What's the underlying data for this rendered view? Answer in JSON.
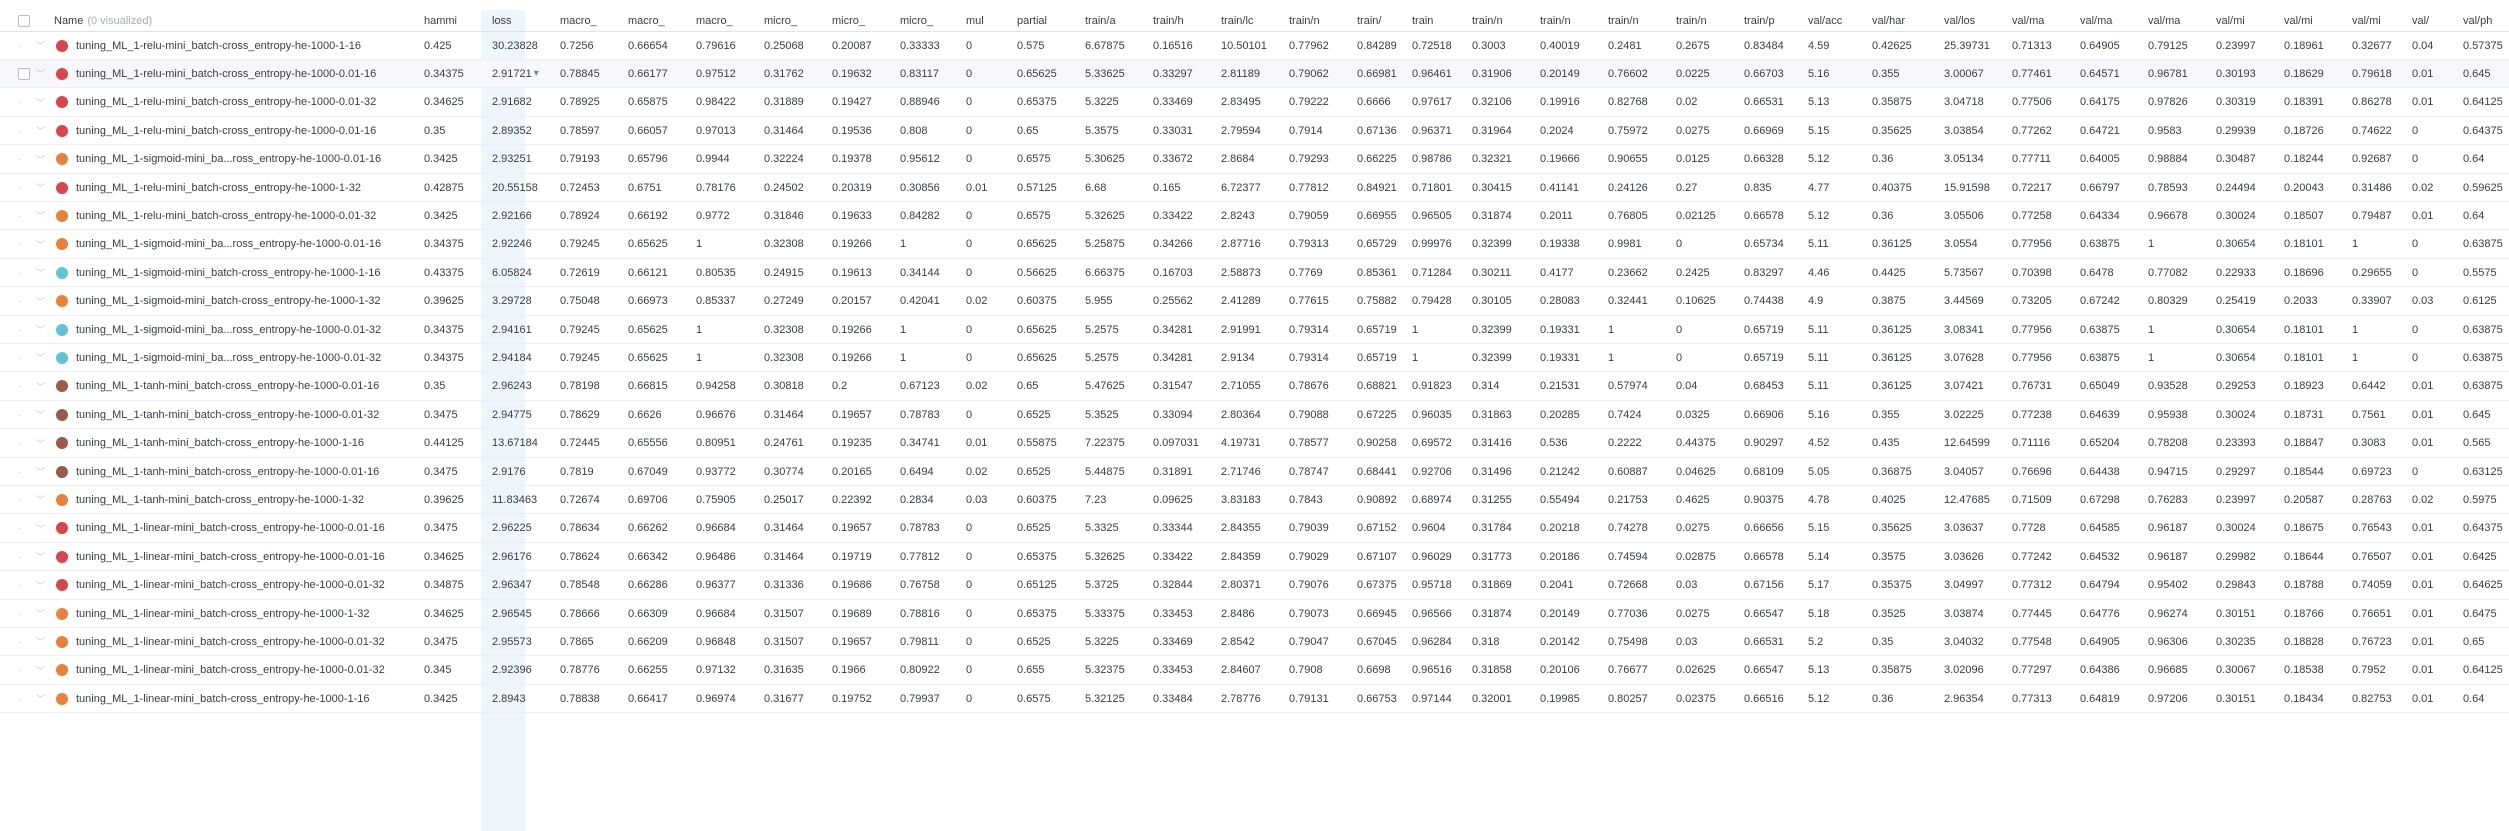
{
  "header": {
    "name_label": "Name",
    "visualized_label": "(0 visualized)",
    "columns": [
      "hammi",
      "loss",
      "macro_",
      "macro_",
      "macro_",
      "micro_",
      "micro_",
      "micro_",
      "mul",
      "partial",
      "train/a",
      "train/h",
      "train/lc",
      "train/n",
      "train/",
      "train",
      "train/n",
      "train/n",
      "train/n",
      "train/n",
      "train/p",
      "val/acc",
      "val/har",
      "val/los",
      "val/ma",
      "val/ma",
      "val/ma",
      "val/mi",
      "val/mi",
      "val/mi",
      "val/",
      "val/ph"
    ]
  },
  "colors": {
    "red": "#d9454b",
    "orange": "#e8813a",
    "cyan": "#5ec4d8",
    "brown": "#9b5b46"
  },
  "rows": [
    {
      "name": "tuning_ML_1-relu-mini_batch-cross_entropy-he-1000-1-16",
      "color": "red",
      "values": [
        "0.425",
        "30.23828",
        "0.7256",
        "0.66654",
        "0.79616",
        "0.25068",
        "0.20087",
        "0.33333",
        "0",
        "0.575",
        "6.67875",
        "0.16516",
        "10.50101",
        "0.77962",
        "0.84289",
        "0.72518",
        "0.3003",
        "0.40019",
        "0.2481",
        "0.2675",
        "0.83484",
        "4.59",
        "0.42625",
        "25.39731",
        "0.71313",
        "0.64905",
        "0.79125",
        "0.23997",
        "0.18961",
        "0.32677",
        "0.04",
        "0.57375"
      ]
    },
    {
      "name": "tuning_ML_1-relu-mini_batch-cross_entropy-he-1000-0.01-16",
      "color": "red",
      "values": [
        "0.34375",
        "2.91721",
        "0.78845",
        "0.66177",
        "0.97512",
        "0.31762",
        "0.19632",
        "0.83117",
        "0",
        "0.65625",
        "5.33625",
        "0.33297",
        "2.81189",
        "0.79062",
        "0.66981",
        "0.96461",
        "0.31906",
        "0.20149",
        "0.76602",
        "0.0225",
        "0.66703",
        "5.16",
        "0.355",
        "3.00067",
        "0.77461",
        "0.64571",
        "0.96781",
        "0.30193",
        "0.18629",
        "0.79618",
        "0.01",
        "0.645"
      ]
    },
    {
      "name": "tuning_ML_1-relu-mini_batch-cross_entropy-he-1000-0.01-32",
      "color": "red",
      "values": [
        "0.34625",
        "2.91682",
        "0.78925",
        "0.65875",
        "0.98422",
        "0.31889",
        "0.19427",
        "0.88946",
        "0",
        "0.65375",
        "5.3225",
        "0.33469",
        "2.83495",
        "0.79222",
        "0.6666",
        "0.97617",
        "0.32106",
        "0.19916",
        "0.82768",
        "0.02",
        "0.66531",
        "5.13",
        "0.35875",
        "3.04718",
        "0.77506",
        "0.64175",
        "0.97826",
        "0.30319",
        "0.18391",
        "0.86278",
        "0.01",
        "0.64125"
      ]
    },
    {
      "name": "tuning_ML_1-relu-mini_batch-cross_entropy-he-1000-0.01-16",
      "color": "red",
      "values": [
        "0.35",
        "2.89352",
        "0.78597",
        "0.66057",
        "0.97013",
        "0.31464",
        "0.19536",
        "0.808",
        "0",
        "0.65",
        "5.3575",
        "0.33031",
        "2.79594",
        "0.7914",
        "0.67136",
        "0.96371",
        "0.31964",
        "0.2024",
        "0.75972",
        "0.0275",
        "0.66969",
        "5.15",
        "0.35625",
        "3.03854",
        "0.77262",
        "0.64721",
        "0.9583",
        "0.29939",
        "0.18726",
        "0.74622",
        "0",
        "0.64375"
      ]
    },
    {
      "name": "tuning_ML_1-sigmoid-mini_ba...ross_entropy-he-1000-0.01-16",
      "color": "orange",
      "values": [
        "0.3425",
        "2.93251",
        "0.79193",
        "0.65796",
        "0.9944",
        "0.32224",
        "0.19378",
        "0.95612",
        "0",
        "0.6575",
        "5.30625",
        "0.33672",
        "2.8684",
        "0.79293",
        "0.66225",
        "0.98786",
        "0.32321",
        "0.19666",
        "0.90655",
        "0.0125",
        "0.66328",
        "5.12",
        "0.36",
        "3.05134",
        "0.77711",
        "0.64005",
        "0.98884",
        "0.30487",
        "0.18244",
        "0.92687",
        "0",
        "0.64"
      ]
    },
    {
      "name": "tuning_ML_1-relu-mini_batch-cross_entropy-he-1000-1-32",
      "color": "red",
      "values": [
        "0.42875",
        "20.55158",
        "0.72453",
        "0.6751",
        "0.78176",
        "0.24502",
        "0.20319",
        "0.30856",
        "0.01",
        "0.57125",
        "6.68",
        "0.165",
        "6.72377",
        "0.77812",
        "0.84921",
        "0.71801",
        "0.30415",
        "0.41141",
        "0.24126",
        "0.27",
        "0.835",
        "4.77",
        "0.40375",
        "15.91598",
        "0.72217",
        "0.66797",
        "0.78593",
        "0.24494",
        "0.20043",
        "0.31486",
        "0.02",
        "0.59625"
      ]
    },
    {
      "name": "tuning_ML_1-relu-mini_batch-cross_entropy-he-1000-0.01-32",
      "color": "orange",
      "values": [
        "0.3425",
        "2.92166",
        "0.78924",
        "0.66192",
        "0.9772",
        "0.31846",
        "0.19633",
        "0.84282",
        "0",
        "0.6575",
        "5.32625",
        "0.33422",
        "2.8243",
        "0.79059",
        "0.66955",
        "0.96505",
        "0.31874",
        "0.2011",
        "0.76805",
        "0.02125",
        "0.66578",
        "5.12",
        "0.36",
        "3.05506",
        "0.77258",
        "0.64334",
        "0.96678",
        "0.30024",
        "0.18507",
        "0.79487",
        "0.01",
        "0.64"
      ]
    },
    {
      "name": "tuning_ML_1-sigmoid-mini_ba...ross_entropy-he-1000-0.01-16",
      "color": "orange",
      "values": [
        "0.34375",
        "2.92246",
        "0.79245",
        "0.65625",
        "1",
        "0.32308",
        "0.19266",
        "1",
        "0",
        "0.65625",
        "5.25875",
        "0.34266",
        "2.87716",
        "0.79313",
        "0.65729",
        "0.99976",
        "0.32399",
        "0.19338",
        "0.9981",
        "0",
        "0.65734",
        "5.11",
        "0.36125",
        "3.0554",
        "0.77956",
        "0.63875",
        "1",
        "0.30654",
        "0.18101",
        "1",
        "0",
        "0.63875"
      ]
    },
    {
      "name": "tuning_ML_1-sigmoid-mini_batch-cross_entropy-he-1000-1-16",
      "color": "cyan",
      "values": [
        "0.43375",
        "6.05824",
        "0.72619",
        "0.66121",
        "0.80535",
        "0.24915",
        "0.19613",
        "0.34144",
        "0",
        "0.56625",
        "6.66375",
        "0.16703",
        "2.58873",
        "0.7769",
        "0.85361",
        "0.71284",
        "0.30211",
        "0.4177",
        "0.23662",
        "0.2425",
        "0.83297",
        "4.46",
        "0.4425",
        "5.73567",
        "0.70398",
        "0.6478",
        "0.77082",
        "0.22933",
        "0.18696",
        "0.29655",
        "0",
        "0.5575"
      ]
    },
    {
      "name": "tuning_ML_1-sigmoid-mini_batch-cross_entropy-he-1000-1-32",
      "color": "orange",
      "values": [
        "0.39625",
        "3.29728",
        "0.75048",
        "0.66973",
        "0.85337",
        "0.27249",
        "0.20157",
        "0.42041",
        "0.02",
        "0.60375",
        "5.955",
        "0.25562",
        "2.41289",
        "0.77615",
        "0.75882",
        "0.79428",
        "0.30105",
        "0.28083",
        "0.32441",
        "0.10625",
        "0.74438",
        "4.9",
        "0.3875",
        "3.44569",
        "0.73205",
        "0.67242",
        "0.80329",
        "0.25419",
        "0.2033",
        "0.33907",
        "0.03",
        "0.6125"
      ]
    },
    {
      "name": "tuning_ML_1-sigmoid-mini_ba...ross_entropy-he-1000-0.01-32",
      "color": "cyan",
      "values": [
        "0.34375",
        "2.94161",
        "0.79245",
        "0.65625",
        "1",
        "0.32308",
        "0.19266",
        "1",
        "0",
        "0.65625",
        "5.2575",
        "0.34281",
        "2.91991",
        "0.79314",
        "0.65719",
        "1",
        "0.32399",
        "0.19331",
        "1",
        "0",
        "0.65719",
        "5.11",
        "0.36125",
        "3.08341",
        "0.77956",
        "0.63875",
        "1",
        "0.30654",
        "0.18101",
        "1",
        "0",
        "0.63875"
      ]
    },
    {
      "name": "tuning_ML_1-sigmoid-mini_ba...ross_entropy-he-1000-0.01-32",
      "color": "cyan",
      "values": [
        "0.34375",
        "2.94184",
        "0.79245",
        "0.65625",
        "1",
        "0.32308",
        "0.19266",
        "1",
        "0",
        "0.65625",
        "5.2575",
        "0.34281",
        "2.9134",
        "0.79314",
        "0.65719",
        "1",
        "0.32399",
        "0.19331",
        "1",
        "0",
        "0.65719",
        "5.11",
        "0.36125",
        "3.07628",
        "0.77956",
        "0.63875",
        "1",
        "0.30654",
        "0.18101",
        "1",
        "0",
        "0.63875"
      ]
    },
    {
      "name": "tuning_ML_1-tanh-mini_batch-cross_entropy-he-1000-0.01-16",
      "color": "brown",
      "values": [
        "0.35",
        "2.96243",
        "0.78198",
        "0.66815",
        "0.94258",
        "0.30818",
        "0.2",
        "0.67123",
        "0.02",
        "0.65",
        "5.47625",
        "0.31547",
        "2.71055",
        "0.78676",
        "0.68821",
        "0.91823",
        "0.314",
        "0.21531",
        "0.57974",
        "0.04",
        "0.68453",
        "5.11",
        "0.36125",
        "3.07421",
        "0.76731",
        "0.65049",
        "0.93528",
        "0.29253",
        "0.18923",
        "0.6442",
        "0.01",
        "0.63875"
      ]
    },
    {
      "name": "tuning_ML_1-tanh-mini_batch-cross_entropy-he-1000-0.01-32",
      "color": "brown",
      "values": [
        "0.3475",
        "2.94775",
        "0.78629",
        "0.6626",
        "0.96676",
        "0.31464",
        "0.19657",
        "0.78783",
        "0",
        "0.6525",
        "5.3525",
        "0.33094",
        "2.80364",
        "0.79088",
        "0.67225",
        "0.96035",
        "0.31863",
        "0.20285",
        "0.7424",
        "0.0325",
        "0.66906",
        "5.16",
        "0.355",
        "3.02225",
        "0.77238",
        "0.64639",
        "0.95938",
        "0.30024",
        "0.18731",
        "0.7561",
        "0.01",
        "0.645"
      ]
    },
    {
      "name": "tuning_ML_1-tanh-mini_batch-cross_entropy-he-1000-1-16",
      "color": "brown",
      "values": [
        "0.44125",
        "13.67184",
        "0.72445",
        "0.65556",
        "0.80951",
        "0.24761",
        "0.19235",
        "0.34741",
        "0.01",
        "0.55875",
        "7.22375",
        "0.097031",
        "4.19731",
        "0.78577",
        "0.90258",
        "0.69572",
        "0.31416",
        "0.536",
        "0.2222",
        "0.44375",
        "0.90297",
        "4.52",
        "0.435",
        "12.64599",
        "0.71116",
        "0.65204",
        "0.78208",
        "0.23393",
        "0.18847",
        "0.3083",
        "0.01",
        "0.565"
      ]
    },
    {
      "name": "tuning_ML_1-tanh-mini_batch-cross_entropy-he-1000-0.01-16",
      "color": "brown",
      "values": [
        "0.3475",
        "2.9176",
        "0.7819",
        "0.67049",
        "0.93772",
        "0.30774",
        "0.20165",
        "0.6494",
        "0.02",
        "0.6525",
        "5.44875",
        "0.31891",
        "2.71746",
        "0.78747",
        "0.68441",
        "0.92706",
        "0.31496",
        "0.21242",
        "0.60887",
        "0.04625",
        "0.68109",
        "5.05",
        "0.36875",
        "3.04057",
        "0.76696",
        "0.64438",
        "0.94715",
        "0.29297",
        "0.18544",
        "0.69723",
        "0",
        "0.63125"
      ]
    },
    {
      "name": "tuning_ML_1-tanh-mini_batch-cross_entropy-he-1000-1-32",
      "color": "orange",
      "values": [
        "0.39625",
        "11.83463",
        "0.72674",
        "0.69706",
        "0.75905",
        "0.25017",
        "0.22392",
        "0.2834",
        "0.03",
        "0.60375",
        "7.23",
        "0.09625",
        "3.83183",
        "0.7843",
        "0.90892",
        "0.68974",
        "0.31255",
        "0.55494",
        "0.21753",
        "0.4625",
        "0.90375",
        "4.78",
        "0.4025",
        "12.47685",
        "0.71509",
        "0.67298",
        "0.76283",
        "0.23997",
        "0.20587",
        "0.28763",
        "0.02",
        "0.5975"
      ]
    },
    {
      "name": "tuning_ML_1-linear-mini_batch-cross_entropy-he-1000-0.01-16",
      "color": "red",
      "values": [
        "0.3475",
        "2.96225",
        "0.78634",
        "0.66262",
        "0.96684",
        "0.31464",
        "0.19657",
        "0.78783",
        "0",
        "0.6525",
        "5.3325",
        "0.33344",
        "2.84355",
        "0.79039",
        "0.67152",
        "0.9604",
        "0.31784",
        "0.20218",
        "0.74278",
        "0.0275",
        "0.66656",
        "5.15",
        "0.35625",
        "3.03637",
        "0.7728",
        "0.64585",
        "0.96187",
        "0.30024",
        "0.18675",
        "0.76543",
        "0.01",
        "0.64375"
      ]
    },
    {
      "name": "tuning_ML_1-linear-mini_batch-cross_entropy-he-1000-0.01-16",
      "color": "red",
      "values": [
        "0.34625",
        "2.96176",
        "0.78624",
        "0.66342",
        "0.96486",
        "0.31464",
        "0.19719",
        "0.77812",
        "0",
        "0.65375",
        "5.32625",
        "0.33422",
        "2.84359",
        "0.79029",
        "0.67107",
        "0.96029",
        "0.31773",
        "0.20186",
        "0.74594",
        "0.02875",
        "0.66578",
        "5.14",
        "0.3575",
        "3.03626",
        "0.77242",
        "0.64532",
        "0.96187",
        "0.29982",
        "0.18644",
        "0.76507",
        "0.01",
        "0.6425"
      ]
    },
    {
      "name": "tuning_ML_1-linear-mini_batch-cross_entropy-he-1000-0.01-32",
      "color": "red",
      "values": [
        "0.34875",
        "2.96347",
        "0.78548",
        "0.66286",
        "0.96377",
        "0.31336",
        "0.19686",
        "0.76758",
        "0",
        "0.65125",
        "5.3725",
        "0.32844",
        "2.80371",
        "0.79076",
        "0.67375",
        "0.95718",
        "0.31869",
        "0.2041",
        "0.72668",
        "0.03",
        "0.67156",
        "5.17",
        "0.35375",
        "3.04997",
        "0.77312",
        "0.64794",
        "0.95402",
        "0.29843",
        "0.18788",
        "0.74059",
        "0.01",
        "0.64625"
      ]
    },
    {
      "name": "tuning_ML_1-linear-mini_batch-cross_entropy-he-1000-1-32",
      "color": "orange",
      "values": [
        "0.34625",
        "2.96545",
        "0.78666",
        "0.66309",
        "0.96684",
        "0.31507",
        "0.19689",
        "0.78816",
        "0",
        "0.65375",
        "5.33375",
        "0.33453",
        "2.8486",
        "0.79073",
        "0.66945",
        "0.96566",
        "0.31874",
        "0.20149",
        "0.77036",
        "0.0275",
        "0.66547",
        "5.18",
        "0.3525",
        "3.03874",
        "0.77445",
        "0.64776",
        "0.96274",
        "0.30151",
        "0.18766",
        "0.76651",
        "0.01",
        "0.6475"
      ]
    },
    {
      "name": "tuning_ML_1-linear-mini_batch-cross_entropy-he-1000-0.01-32",
      "color": "orange",
      "values": [
        "0.3475",
        "2.95573",
        "0.7865",
        "0.66209",
        "0.96848",
        "0.31507",
        "0.19657",
        "0.79811",
        "0",
        "0.6525",
        "5.3225",
        "0.33469",
        "2.8542",
        "0.79047",
        "0.67045",
        "0.96284",
        "0.318",
        "0.20142",
        "0.75498",
        "0.03",
        "0.66531",
        "5.2",
        "0.35",
        "3.04032",
        "0.77548",
        "0.64905",
        "0.96306",
        "0.30235",
        "0.18828",
        "0.76723",
        "0.01",
        "0.65"
      ]
    },
    {
      "name": "tuning_ML_1-linear-mini_batch-cross_entropy-he-1000-0.01-32",
      "color": "orange",
      "values": [
        "0.345",
        "2.92396",
        "0.78776",
        "0.66255",
        "0.97132",
        "0.31635",
        "0.1966",
        "0.80922",
        "0",
        "0.655",
        "5.32375",
        "0.33453",
        "2.84607",
        "0.7908",
        "0.6698",
        "0.96516",
        "0.31858",
        "0.20106",
        "0.76677",
        "0.02625",
        "0.66547",
        "5.13",
        "0.35875",
        "3.02096",
        "0.77297",
        "0.64386",
        "0.96685",
        "0.30067",
        "0.18538",
        "0.7952",
        "0.01",
        "0.64125"
      ]
    },
    {
      "name": "tuning_ML_1-linear-mini_batch-cross_entropy-he-1000-1-16",
      "color": "orange",
      "values": [
        "0.3425",
        "2.8943",
        "0.78838",
        "0.66417",
        "0.96974",
        "0.31677",
        "0.19752",
        "0.79937",
        "0",
        "0.6575",
        "5.32125",
        "0.33484",
        "2.78776",
        "0.79131",
        "0.66753",
        "0.97144",
        "0.32001",
        "0.19985",
        "0.80257",
        "0.02375",
        "0.66516",
        "5.12",
        "0.36",
        "2.96354",
        "0.77313",
        "0.64819",
        "0.97206",
        "0.30151",
        "0.18434",
        "0.82753",
        "0.01",
        "0.64"
      ]
    }
  ]
}
